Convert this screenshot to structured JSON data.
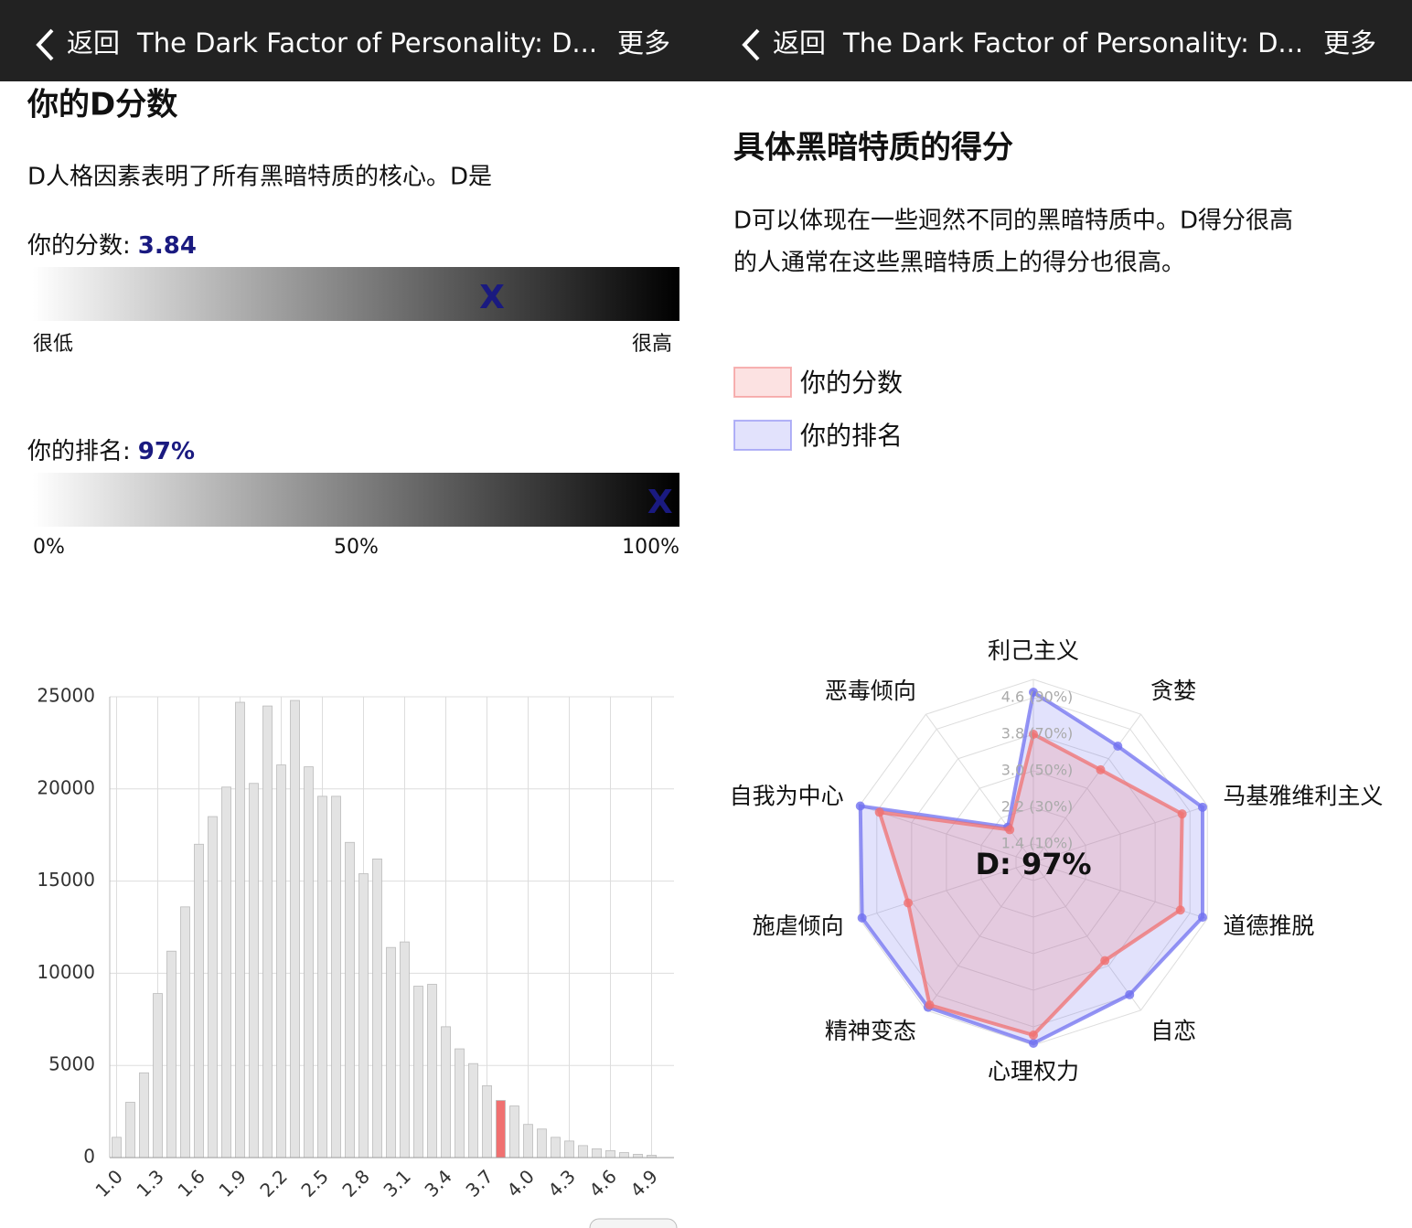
{
  "headers": [
    {
      "back": "返回",
      "title": "The Dark Factor of Personality: D...",
      "more": "更多"
    },
    {
      "back": "返回",
      "title": "The Dark Factor of Personality: D...",
      "more": "更多"
    }
  ],
  "score_section": {
    "title": "你的D分数",
    "description": "D人格因素表明了所有黑暗特质的核心。D是",
    "score": {
      "label": "你的分数:",
      "value": 3.84,
      "xlim": [
        1,
        5
      ],
      "marker": "X",
      "low": "很低",
      "high": "很高"
    },
    "rank": {
      "label": "你的排名:",
      "value": {
        "value": 97,
        "label": "97%"
      },
      "xlim": [
        0,
        100
      ],
      "marker": "X",
      "xticks": [
        {
          "value": 0,
          "label": "0%"
        },
        {
          "value": 50,
          "label": "50%"
        },
        {
          "value": 100,
          "label": "100%"
        }
      ]
    }
  },
  "traits_section": {
    "title": "具体黑暗特质的得分",
    "description": [
      "D可以体现在一些迥然不同的黑暗特质中。D得分很高",
      "的人通常在这些黑暗特质上的得分也很高。"
    ]
  },
  "chart_data": [
    {
      "type": "bar",
      "categories": [
        "1.0",
        null,
        null,
        "1.3",
        null,
        null,
        "1.6",
        null,
        null,
        "1.9",
        null,
        null,
        "2.2",
        null,
        null,
        "2.5",
        null,
        null,
        "2.8",
        null,
        null,
        "3.1",
        null,
        null,
        "3.4",
        null,
        null,
        "3.7",
        null,
        null,
        "4.0",
        null,
        null,
        "4.3",
        null,
        null,
        "4.6",
        null,
        null,
        "4.9"
      ],
      "values": [
        1100,
        3000,
        4600,
        8900,
        11200,
        13600,
        17000,
        18500,
        20100,
        24700,
        20300,
        24500,
        21300,
        24800,
        21200,
        19600,
        19600,
        17100,
        15400,
        16200,
        11400,
        11700,
        9300,
        9400,
        7100,
        5900,
        5100,
        3900,
        3100,
        2800,
        1800,
        1550,
        1100,
        900,
        650,
        480,
        380,
        270,
        180,
        130
      ],
      "colors": [
        "#e3e3e3",
        "#e3e3e3",
        "#e3e3e3",
        "#e3e3e3",
        "#e3e3e3",
        "#e3e3e3",
        "#e3e3e3",
        "#e3e3e3",
        "#e3e3e3",
        "#e3e3e3",
        "#e3e3e3",
        "#e3e3e3",
        "#e3e3e3",
        "#e3e3e3",
        "#e3e3e3",
        "#e3e3e3",
        "#e3e3e3",
        "#e3e3e3",
        "#e3e3e3",
        "#e3e3e3",
        "#e3e3e3",
        "#e3e3e3",
        "#e3e3e3",
        "#e3e3e3",
        "#e3e3e3",
        "#e3e3e3",
        "#e3e3e3",
        "#e3e3e3",
        "#f07070",
        "#e3e3e3",
        "#e3e3e3",
        "#e3e3e3",
        "#e3e3e3",
        "#e3e3e3",
        "#e3e3e3",
        "#e3e3e3",
        "#e3e3e3",
        "#e3e3e3",
        "#e3e3e3",
        "#e3e3e3"
      ],
      "ylim": [
        0,
        25000
      ],
      "yticks": [
        0,
        5000,
        10000,
        15000,
        20000,
        25000
      ],
      "grid": true
    },
    {
      "type": "radar",
      "categories": [
        "利己主义",
        "贪婪",
        "马基雅维利主义",
        "道德推脱",
        "自恋",
        "心理权力",
        "精神变态",
        "施虐倾向",
        "自我为中心",
        "恶毒倾向"
      ],
      "rlim": [
        1,
        5
      ],
      "rticks": [
        {
          "value": 1.4,
          "label": "1.4 (10%)"
        },
        {
          "value": 2.2,
          "label": "2.2 (30%)"
        },
        {
          "value": 3.0,
          "label": "3.0 (50%)"
        },
        {
          "value": 3.8,
          "label": "3.8 (70%)"
        },
        {
          "value": 4.6,
          "label": "4.6 (90%)"
        }
      ],
      "center_label": "D: 97%",
      "legend": "top-left",
      "series": [
        {
          "name": "你的分数",
          "color": "#f07070",
          "values": [
            3.8,
            3.5,
            4.42,
            4.38,
            3.66,
            4.78,
            4.86,
            3.88,
            4.54,
            1.88
          ]
        },
        {
          "name": "你的排名",
          "color": "#7070f0",
          "values": [
            4.72,
            4.14,
            4.89,
            4.89,
            4.58,
            4.96,
            4.92,
            4.94,
            4.98,
            1.95
          ]
        }
      ]
    }
  ]
}
